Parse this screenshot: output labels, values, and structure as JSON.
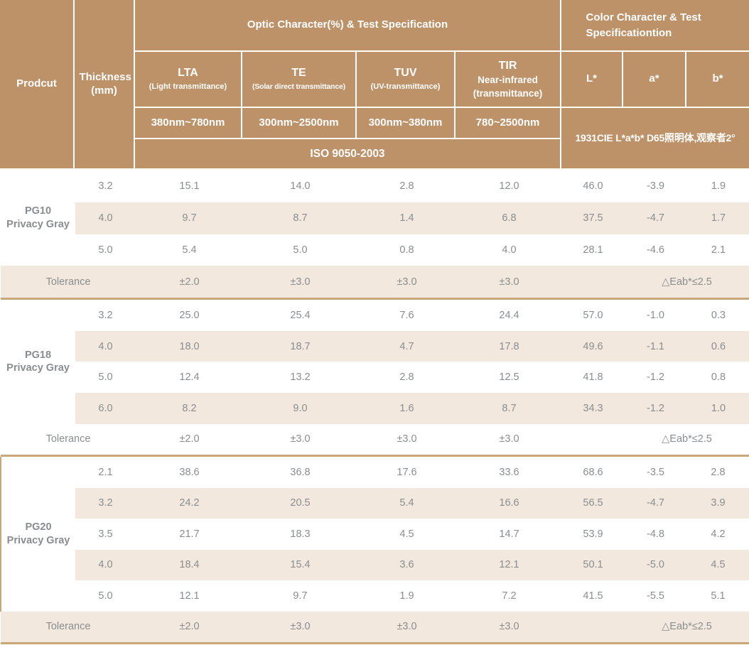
{
  "colors": {
    "header_bg": "#be9268",
    "header_text": "#ffffff",
    "row_shade": "#f2e8de",
    "divider": "#c9a77b",
    "value_text": "#8a8d8f",
    "product_text": "#3e4245",
    "tolerance_text": "#9da0a2"
  },
  "table": {
    "header": {
      "product": "Prodcut",
      "thickness": "Thickness (mm)",
      "optic_group": "Optic Character(%) & Test Specification",
      "color_group": "Color Character & Test Specificationtion",
      "columns": [
        {
          "key": "lta",
          "name": "LTA",
          "subs": [
            "(Light transmittance)"
          ],
          "range": "380nm~780nm"
        },
        {
          "key": "te",
          "name": "TE",
          "subs": [
            "(Solar direct transmittance)"
          ],
          "range": "300nm~2500nm"
        },
        {
          "key": "tuv",
          "name": "TUV",
          "subs": [
            "(UV-transmittance)"
          ],
          "range": "300nm~380nm"
        },
        {
          "key": "tir",
          "name": "TIR",
          "subs": [
            "Near-infrared",
            "(transmittance)"
          ],
          "range": "780~2500nm"
        }
      ],
      "color_columns": [
        "L*",
        "a*",
        "b*"
      ],
      "iso_standard": "ISO 9050-2003",
      "color_standard": "1931CIE L*a*b*  D65照明体,观察者2°"
    },
    "sections": [
      {
        "id": "pg10",
        "product_name": "PG10",
        "product_type": "Privacy Gray",
        "rows": [
          {
            "thickness": "3.2",
            "values": [
              "15.1",
              "14.0",
              "2.8",
              "12.0",
              "46.0",
              "-3.9",
              "1.9"
            ]
          },
          {
            "thickness": "4.0",
            "values": [
              "9.7",
              "8.7",
              "1.4",
              "6.8",
              "37.5",
              "-4.7",
              "1.7"
            ]
          },
          {
            "thickness": "5.0",
            "values": [
              "5.4",
              "5.0",
              "0.8",
              "4.0",
              "28.1",
              "-4.6",
              "2.1"
            ]
          }
        ],
        "tolerance": {
          "label": "Tolerance",
          "optic": [
            "±2.0",
            "±3.0",
            "±3.0",
            "±3.0"
          ],
          "color": "△Eab*≤2.5"
        }
      },
      {
        "id": "pg18",
        "product_name": "PG18",
        "product_type": "Privacy Gray",
        "rows": [
          {
            "thickness": "3.2",
            "values": [
              "25.0",
              "25.4",
              "7.6",
              "24.4",
              "57.0",
              "-1.0",
              "0.3"
            ]
          },
          {
            "thickness": "4.0",
            "values": [
              "18.0",
              "18.7",
              "4.7",
              "17.8",
              "49.6",
              "-1.1",
              "0.6"
            ]
          },
          {
            "thickness": "5.0",
            "values": [
              "12.4",
              "13.2",
              "2.8",
              "12.5",
              "41.8",
              "-1.2",
              "0.8"
            ]
          },
          {
            "thickness": "6.0",
            "values": [
              "8.2",
              "9.0",
              "1.6",
              "8.7",
              "34.3",
              "-1.2",
              "1.0"
            ]
          }
        ],
        "tolerance": {
          "label": "Tolerance",
          "optic": [
            "±2.0",
            "±3.0",
            "±3.0",
            "±3.0"
          ],
          "color": "△Eab*≤2.5"
        }
      },
      {
        "id": "pg20",
        "product_name": "PG20",
        "product_type": "Privacy Gray",
        "rows": [
          {
            "thickness": "2.1",
            "values": [
              "38.6",
              "36.8",
              "17.6",
              "33.6",
              "68.6",
              "-3.5",
              "2.8"
            ]
          },
          {
            "thickness": "3.2",
            "values": [
              "24.2",
              "20.5",
              "5.4",
              "16.6",
              "56.5",
              "-4.7",
              "3.9"
            ]
          },
          {
            "thickness": "3.5",
            "values": [
              "21.7",
              "18.3",
              "4.5",
              "14.7",
              "53.9",
              "-4.8",
              "4.2"
            ]
          },
          {
            "thickness": "4.0",
            "values": [
              "18.4",
              "15.4",
              "3.6",
              "12.1",
              "50.1",
              "-5.0",
              "4.5"
            ]
          },
          {
            "thickness": "5.0",
            "values": [
              "12.1",
              "9.7",
              "1.9",
              "7.2",
              "41.5",
              "-5.5",
              "5.1"
            ]
          }
        ],
        "tolerance": {
          "label": "Tolerance",
          "optic": [
            "±2.0",
            "±3.0",
            "±3.0",
            "±3.0"
          ],
          "color": "△Eab*≤2.5"
        }
      }
    ]
  }
}
